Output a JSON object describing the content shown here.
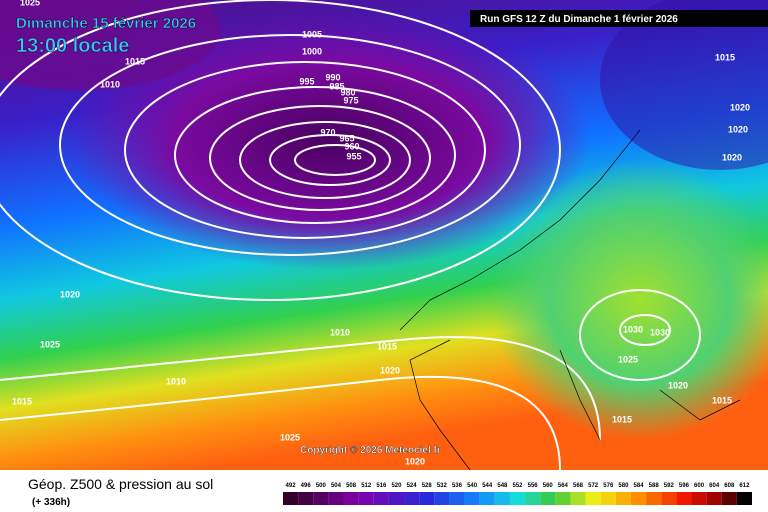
{
  "header": {
    "title": "Dimanche 15 février 2026",
    "time": "13:00 locale",
    "run": "Run GFS 12 Z du Dimanche 1 février 2026"
  },
  "copyright": "Copyright © 2026 Meteociel.fr",
  "footer": {
    "title": "Géop. Z500 & pression au sol",
    "lead": "(+ 336h)"
  },
  "colorbar": [
    "492",
    "496",
    "500",
    "504",
    "508",
    "512",
    "516",
    "520",
    "524",
    "528",
    "532",
    "536",
    "540",
    "544",
    "548",
    "552",
    "556",
    "560",
    "564",
    "568",
    "572",
    "576",
    "580",
    "584",
    "588",
    "592",
    "596",
    "600",
    "604",
    "608",
    "612"
  ],
  "isobar_labels": [
    "1025",
    "1005",
    "1000",
    "1015",
    "1010",
    "995",
    "990",
    "985",
    "980",
    "975",
    "970",
    "965",
    "960",
    "955",
    "1015",
    "1020",
    "1020",
    "1020",
    "1020",
    "1025",
    "1010",
    "1015",
    "1020",
    "1010",
    "1015",
    "1030",
    "1030",
    "1025",
    "1020",
    "1015",
    "1015",
    "1025",
    "1020"
  ]
}
